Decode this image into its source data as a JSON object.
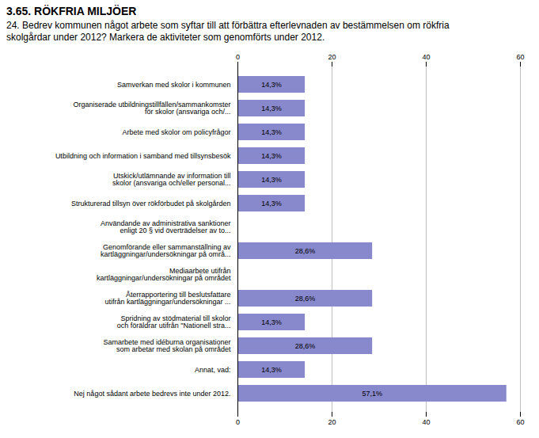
{
  "chart_data": {
    "type": "bar",
    "orientation": "horizontal",
    "title": "3.65. RÖKFRIA MILJÖER",
    "subtitle": "24. Bedrev kommunen något arbete som syftar till att förbättra efterlevnaden av bestämmelsen om rökfria\nskolgårdar under 2012? Markera de aktiviteter som genomförts under 2012.",
    "categories": [
      "Samverkan med skolor i kommunen",
      "Organiserade utbildningstillfällen/sammankomster\nför skolor (ansvariga och/...",
      "Arbete med skolor om policyfrågor",
      "Utbildning och information i samband med tillsynsbesök",
      "Utskick/utlämnande av information till\nskolor (ansvariga och/eller personal...",
      "Strukturerad tillsyn över rökförbudet på skolgården",
      "Användande av administrativa sanktioner\nenligt 20 § vid överträdelser av to...",
      "Genomförande eller sammanställning av\nkartläggningar/undersökningar på områ...",
      "Mediaarbete utifrån\nkartläggningar/undersökningar på området",
      "Återrapportering till beslutsfattare\nutifrån kartläggningar/undersökningar ...",
      "Spridning av stödmaterial till skolor\noch föräldrar utifrån \"Nationell stra...",
      "Samarbete med idéburna organisationer\nsom arbetar med skolan på området",
      "Annat, vad:",
      "Nej något sådant arbete bedrevs inte under 2012."
    ],
    "values": [
      14.3,
      14.3,
      14.3,
      14.3,
      14.3,
      14.3,
      0.0,
      28.6,
      0.0,
      28.6,
      14.3,
      28.6,
      14.3,
      57.1
    ],
    "value_labels": [
      "14,3%",
      "14,3%",
      "14,3%",
      "14,3%",
      "14,3%",
      "14,3%",
      null,
      "28,6%",
      null,
      "28,6%",
      "14,3%",
      "28,6%",
      "14,3%",
      "57,1%"
    ],
    "data_labels": true,
    "color": "#8888cc",
    "xlim": [
      0,
      60
    ],
    "xticks": [
      0,
      20,
      40,
      60
    ],
    "grid": true
  }
}
